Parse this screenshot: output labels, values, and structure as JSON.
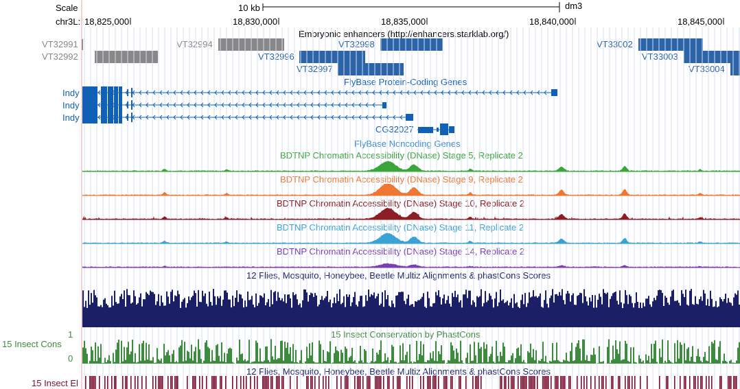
{
  "genome_browser": {
    "assembly": "dm3",
    "scale_label": "Scale",
    "scale_bar_text": "10 kb",
    "chrom_label": "chr3L:",
    "position_ticks": [
      "18,825,000",
      "18,830,000",
      "18,835,000",
      "18,840,000",
      "18,845,000"
    ],
    "tracks": {
      "enhancers": {
        "title": "Embryonic enhancers (http://enhancers.starklab.org/)",
        "items": [
          {
            "name": "VT32991",
            "color": "#888888"
          },
          {
            "name": "VT32992",
            "color": "#888888"
          },
          {
            "name": "VT32994",
            "color": "#888888"
          },
          {
            "name": "VT32996",
            "color": "#2b65a8"
          },
          {
            "name": "VT32997",
            "color": "#2b65a8"
          },
          {
            "name": "VT32998",
            "color": "#2b65a8"
          },
          {
            "name": "VT33002",
            "color": "#2b65a8"
          },
          {
            "name": "VT33003",
            "color": "#2b65a8"
          },
          {
            "name": "VT33004",
            "color": "#2b65a8"
          }
        ]
      },
      "protein_genes": {
        "title": "FlyBase Protein-Coding Genes",
        "genes": [
          "Indy",
          "Indy",
          "Indy",
          "CG32027"
        ],
        "color": "#1160b8"
      },
      "noncoding_genes": {
        "title": "FlyBase Noncoding Genes"
      },
      "dnase": [
        {
          "title": "BDTNP Chromatin Accessibility (DNase) Stage 5, Replicate 2",
          "color": "#3aa63a",
          "style": "solid"
        },
        {
          "title": "BDTNP Chromatin Accessibility (DNase) Stage 9, Replicate 2",
          "color": "#ee7733",
          "style": "solid"
        },
        {
          "title": "BDTNP Chromatin Accessibility (DNase) Stage 10, Replicate 2",
          "color": "#8b1e24",
          "style": "solid"
        },
        {
          "title": "BDTNP Chromatin Accessibility (DNase) Stage 11, Replicate 2",
          "color": "#3ba3d3",
          "style": "solid"
        },
        {
          "title": "BDTNP Chromatin Accessibility (DNase) Stage 14, Replicate 2",
          "color": "#7a3fb0",
          "style": "solid"
        }
      ],
      "multiz": {
        "title": "12 Flies, Mosquito, Honeybee, Beetle Multiz Alignments & phastCons Scores",
        "color": "#1a1f66"
      },
      "conservation": {
        "title": "15 Insect Conservation by PhastCons",
        "side_label": "15 Insect Cons",
        "ymax_label": "1",
        "ymin_label": "0",
        "color": "#3e8a3e"
      },
      "elements": {
        "title": "12 Flies, Mosquito, Honeybee, Beetle Multiz Alignments & phastCons Scores",
        "side_label": "15 Insect El",
        "color": "#7a1030"
      }
    }
  }
}
